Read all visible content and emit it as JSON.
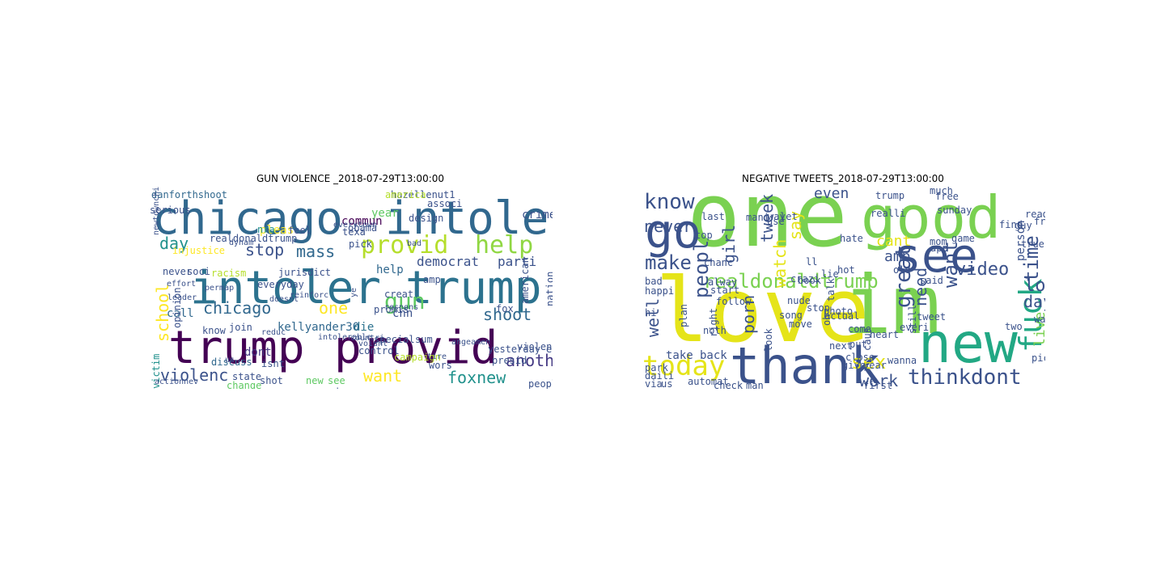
{
  "figure": {
    "left_title": "GUN VIOLENCE _2018-07-29T13:00:00",
    "right_title": "NEGATIVE TWEETS_2018-07-29T13:00:00"
  },
  "clouds": [
    {
      "name": "gun-violence-wordcloud",
      "words": [
        {
          "text": "chicago",
          "c": "#31688e"
        },
        {
          "text": "intoler",
          "c": "#31688e"
        },
        {
          "text": "intoler",
          "c": "#2c728e"
        },
        {
          "text": "trump",
          "c": "#2c728e"
        },
        {
          "text": "trump",
          "c": "#440154"
        },
        {
          "text": "provid",
          "c": "#440154"
        },
        {
          "text": "provid",
          "c": "#b5de2b"
        },
        {
          "text": "help",
          "c": "#90d743"
        },
        {
          "text": "stop",
          "c": "#3b528b"
        },
        {
          "text": "mass",
          "c": "#31688e"
        },
        {
          "text": "day",
          "c": "#21918c"
        },
        {
          "text": "gun",
          "c": "#5ec962"
        },
        {
          "text": "one",
          "c": "#fde725"
        },
        {
          "text": "chicago",
          "c": "#31688e"
        },
        {
          "text": "school",
          "c": "#fde725"
        },
        {
          "text": "shoot",
          "c": "#31688e"
        },
        {
          "text": "democrat",
          "c": "#3b528b"
        },
        {
          "text": "parti",
          "c": "#3b528b"
        },
        {
          "text": "anoth",
          "c": "#443983"
        },
        {
          "text": "foxnew",
          "c": "#21918c"
        },
        {
          "text": "violenc",
          "c": "#3b528b"
        },
        {
          "text": "want",
          "c": "#fde725"
        },
        {
          "text": "kellyander30",
          "c": "#31688e"
        },
        {
          "text": "die",
          "c": "#2c728e"
        },
        {
          "text": "cnn",
          "c": "#3b528b"
        },
        {
          "text": "call",
          "c": "#31688e"
        },
        {
          "text": "pleas",
          "c": "#fde725"
        },
        {
          "text": "year",
          "c": "#5ec962"
        },
        {
          "text": "crime",
          "c": "#3b528b"
        },
        {
          "text": "danforthshoot",
          "c": "#31688e"
        },
        {
          "text": "hazellenut1",
          "c": "#3b528b"
        },
        {
          "text": "victim",
          "c": "#21918c"
        },
        {
          "text": "dont",
          "c": "#443983"
        },
        {
          "text": "isnt",
          "c": "#3b528b"
        },
        {
          "text": "amp",
          "c": "#3b528b"
        },
        {
          "text": "help",
          "c": "#31688e"
        },
        {
          "text": "nra",
          "c": "#21918c"
        },
        {
          "text": "feel",
          "c": "#3b528b"
        },
        {
          "text": "commun",
          "c": "#440154"
        },
        {
          "text": "realdonaldtrump",
          "c": "#3b528b"
        },
        {
          "text": "racism",
          "c": "#b5de2b"
        },
        {
          "text": "injustice",
          "c": "#fde725"
        },
        {
          "text": "join",
          "c": "#3b528b"
        },
        {
          "text": "know",
          "c": "#3b528b"
        },
        {
          "text": "discuss",
          "c": "#31688e"
        },
        {
          "text": "state",
          "c": "#3b528b"
        },
        {
          "text": "change",
          "c": "#5ec962"
        },
        {
          "text": "control",
          "c": "#3b528b"
        },
        {
          "text": "campaign",
          "c": "#b5de2b"
        },
        {
          "text": "sum",
          "c": "#3b528b"
        },
        {
          "text": "new",
          "c": "#5ec962"
        },
        {
          "text": "see",
          "c": "#5ec962"
        },
        {
          "text": "shot",
          "c": "#3b528b"
        },
        {
          "text": "send",
          "c": "#3b528b"
        },
        {
          "text": "wors",
          "c": "#3b528b"
        },
        {
          "text": "presid",
          "c": "#3b528b"
        },
        {
          "text": "violence",
          "c": "#3b528b"
        },
        {
          "text": "educ",
          "c": "#3b528b"
        },
        {
          "text": "peopl",
          "c": "#3b528b"
        },
        {
          "text": "fox",
          "c": "#3b528b"
        },
        {
          "text": "american",
          "c": "#3b528b"
        },
        {
          "text": "nation",
          "c": "#3b528b"
        },
        {
          "text": "opinion",
          "c": "#3b528b"
        },
        {
          "text": "everyday",
          "c": "#3b528b"
        },
        {
          "text": "jurisdict",
          "c": "#3b528b"
        },
        {
          "text": "texa",
          "c": "#3b528b"
        },
        {
          "text": "obama",
          "c": "#3b528b"
        },
        {
          "text": "pick",
          "c": "#3b528b"
        },
        {
          "text": "never",
          "c": "#3b528b"
        },
        {
          "text": "soci",
          "c": "#3b528b"
        },
        {
          "text": "america",
          "c": "#b5de2b"
        },
        {
          "text": "associ",
          "c": "#3b528b"
        },
        {
          "text": "design",
          "c": "#3b528b"
        },
        {
          "text": "serious",
          "c": "#3b528b"
        },
        {
          "text": "special",
          "c": "#3b528b"
        },
        {
          "text": "yesterday",
          "c": "#3b528b"
        },
        {
          "text": "creat",
          "c": "#3b528b"
        },
        {
          "text": "promis",
          "c": "#3b528b"
        },
        {
          "text": "intolerable",
          "c": "#3b528b"
        },
        {
          "text": "countri",
          "c": "#3b528b"
        },
        {
          "text": "reduc",
          "c": "#3b528b"
        },
        {
          "text": "actionnev",
          "c": "#3b528b"
        },
        {
          "text": "newtownchicago",
          "c": "#3b528b"
        },
        {
          "text": "everytown",
          "c": "#3b528b"
        },
        {
          "text": "us",
          "c": "#3b528b"
        },
        {
          "text": "bad",
          "c": "#3b528b"
        },
        {
          "text": "respons",
          "c": "#3b528b"
        },
        {
          "text": "voiunt",
          "c": "#3b528b"
        },
        {
          "text": "angeamen",
          "c": "#3b528b"
        },
        {
          "text": "reinforc",
          "c": "#3b528b"
        },
        {
          "text": "doesnt",
          "c": "#3b528b"
        },
        {
          "text": "effort",
          "c": "#3b528b"
        },
        {
          "text": "leader",
          "c": "#3b528b"
        },
        {
          "text": "dynam",
          "c": "#3b528b"
        },
        {
          "text": "permap",
          "c": "#3b528b"
        },
        {
          "text": "ye",
          "c": "#3b528b"
        },
        {
          "text": "tire",
          "c": "#3b528b"
        },
        {
          "text": "machspotato",
          "c": "#3b528b"
        }
      ]
    },
    {
      "name": "negative-tweets-wordcloud",
      "words": [
        {
          "text": "one",
          "c": "#7ad151"
        },
        {
          "text": "good",
          "c": "#7ad151"
        },
        {
          "text": "love",
          "c": "#e5e419"
        },
        {
          "text": "im",
          "c": "#7ad151"
        },
        {
          "text": "go",
          "c": "#3b528b"
        },
        {
          "text": "see",
          "c": "#3b528b"
        },
        {
          "text": "new",
          "c": "#22a884"
        },
        {
          "text": "thank",
          "c": "#3b528b"
        },
        {
          "text": "today",
          "c": "#e5e419"
        },
        {
          "text": "realdonaldtrump",
          "c": "#7ad151"
        },
        {
          "text": "know",
          "c": "#3b528b"
        },
        {
          "text": "make",
          "c": "#3b528b"
        },
        {
          "text": "fuck",
          "c": "#22a884"
        },
        {
          "text": "time",
          "c": "#3b528b"
        },
        {
          "text": "video",
          "c": "#3b528b"
        },
        {
          "text": "think",
          "c": "#3b528b"
        },
        {
          "text": "dont",
          "c": "#3b528b"
        },
        {
          "text": "great",
          "c": "#3b528b"
        },
        {
          "text": "want",
          "c": "#3b528b"
        },
        {
          "text": "sex",
          "c": "#e5e419"
        },
        {
          "text": "work",
          "c": "#3b528b"
        },
        {
          "text": "need",
          "c": "#3b528b"
        },
        {
          "text": "peopl",
          "c": "#3b528b"
        },
        {
          "text": "tweek",
          "c": "#3b528b"
        },
        {
          "text": "watch",
          "c": "#e5e419"
        },
        {
          "text": "girl",
          "c": "#3b528b"
        },
        {
          "text": "say",
          "c": "#e5e419"
        },
        {
          "text": "porn",
          "c": "#3b528b"
        },
        {
          "text": "lol",
          "c": "#3b528b"
        },
        {
          "text": "day",
          "c": "#3b528b"
        },
        {
          "text": "never",
          "c": "#3b528b"
        },
        {
          "text": "even",
          "c": "#3b528b"
        },
        {
          "text": "cant",
          "c": "#e5e419"
        },
        {
          "text": "amp",
          "c": "#3b528b"
        },
        {
          "text": "live",
          "c": "#7ad151"
        },
        {
          "text": "person",
          "c": "#3b528b"
        },
        {
          "text": "well",
          "c": "#3b528b"
        },
        {
          "text": "us",
          "c": "#3b528b"
        },
        {
          "text": "via",
          "c": "#3b528b"
        },
        {
          "text": "take",
          "c": "#3b528b"
        },
        {
          "text": "back",
          "c": "#3b528b"
        },
        {
          "text": "free",
          "c": "#3b528b"
        },
        {
          "text": "sunday",
          "c": "#3b528b"
        },
        {
          "text": "much",
          "c": "#3b528b"
        },
        {
          "text": "realli",
          "c": "#3b528b"
        },
        {
          "text": "trump",
          "c": "#3b528b"
        },
        {
          "text": "last",
          "c": "#3b528b"
        },
        {
          "text": "mani",
          "c": "#3b528b"
        },
        {
          "text": "way",
          "c": "#3b528b"
        },
        {
          "text": "let",
          "c": "#3b528b"
        },
        {
          "text": "hate",
          "c": "#3b528b"
        },
        {
          "text": "use",
          "c": "#3b528b"
        },
        {
          "text": "lie",
          "c": "#3b528b"
        },
        {
          "text": "old",
          "c": "#3b528b"
        },
        {
          "text": "said",
          "c": "#3b528b"
        },
        {
          "text": "come",
          "c": "#3b528b"
        },
        {
          "text": "tweet",
          "c": "#3b528b"
        },
        {
          "text": "everi",
          "c": "#3b528b"
        },
        {
          "text": "bad",
          "c": "#3b528b"
        },
        {
          "text": "hi",
          "c": "#3b528b"
        },
        {
          "text": "happi",
          "c": "#3b528b"
        },
        {
          "text": "start",
          "c": "#3b528b"
        },
        {
          "text": "follow",
          "c": "#3b528b"
        },
        {
          "text": "nude",
          "c": "#3b528b"
        },
        {
          "text": "stop",
          "c": "#3b528b"
        },
        {
          "text": "actual",
          "c": "#3b528b"
        },
        {
          "text": "song",
          "c": "#3b528b"
        },
        {
          "text": "give",
          "c": "#3b528b"
        },
        {
          "text": "year",
          "c": "#3b528b"
        },
        {
          "text": "close",
          "c": "#3b528b"
        },
        {
          "text": "wanna",
          "c": "#3b528b"
        },
        {
          "text": "look",
          "c": "#3b528b"
        },
        {
          "text": "noth",
          "c": "#3b528b"
        },
        {
          "text": "right",
          "c": "#3b528b"
        },
        {
          "text": "plan",
          "c": "#3b528b"
        },
        {
          "text": "alway",
          "c": "#3b528b"
        },
        {
          "text": "automat",
          "c": "#3b528b"
        },
        {
          "text": "check",
          "c": "#3b528b"
        },
        {
          "text": "man",
          "c": "#3b528b"
        },
        {
          "text": "pic",
          "c": "#3b528b"
        },
        {
          "text": "wait",
          "c": "#3b528b"
        },
        {
          "text": "two",
          "c": "#3b528b"
        },
        {
          "text": "still",
          "c": "#3b528b"
        },
        {
          "text": "oh",
          "c": "#3b528b"
        },
        {
          "text": "put",
          "c": "#3b528b"
        },
        {
          "text": "heart",
          "c": "#3b528b"
        },
        {
          "text": "next",
          "c": "#3b528b"
        },
        {
          "text": "photo",
          "c": "#3b528b"
        },
        {
          "text": "move",
          "c": "#3b528b"
        },
        {
          "text": "crazi",
          "c": "#3b528b"
        },
        {
          "text": "app",
          "c": "#3b528b"
        },
        {
          "text": "game",
          "c": "#3b528b"
        },
        {
          "text": "read",
          "c": "#3b528b"
        },
        {
          "text": "guy",
          "c": "#3b528b"
        },
        {
          "text": "find",
          "c": "#3b528b"
        },
        {
          "text": "friend",
          "c": "#3b528b"
        },
        {
          "text": "talk",
          "c": "#3b528b"
        },
        {
          "text": "book",
          "c": "#3b528b"
        },
        {
          "text": "mom",
          "c": "#3b528b"
        },
        {
          "text": "top",
          "c": "#3b528b"
        },
        {
          "text": "hot",
          "c": "#3b528b"
        },
        {
          "text": "park",
          "c": "#3b528b"
        },
        {
          "text": "daili",
          "c": "#3b528b"
        },
        {
          "text": "first",
          "c": "#3b528b"
        },
        {
          "text": "caus",
          "c": "#3b528b"
        },
        {
          "text": "true",
          "c": "#3b528b"
        },
        {
          "text": "ll",
          "c": "#3b528b"
        },
        {
          "text": "chanc",
          "c": "#3b528b"
        }
      ]
    }
  ]
}
